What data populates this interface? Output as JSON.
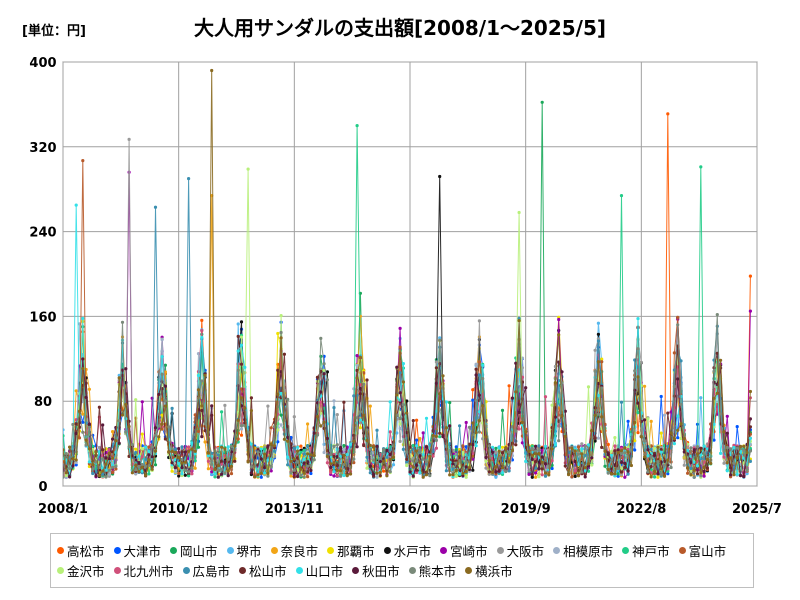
{
  "chart_data": {
    "type": "line",
    "title": "大人用サンダルの支出額[2008/1～2025/5]",
    "unit_label": "[単位：円]",
    "xlabel": "",
    "ylabel": "",
    "ylim": [
      0,
      400
    ],
    "yticks": [
      0,
      80,
      160,
      240,
      320,
      400
    ],
    "x_range": [
      "2008-01",
      "2025-07"
    ],
    "xticks": [
      "2008/1",
      "2010/12",
      "2013/11",
      "2016/10",
      "2019/9",
      "2022/8",
      "2025/7"
    ],
    "grid": true,
    "legend_position": "bottom",
    "series_names": [
      "高松市",
      "大津市",
      "岡山市",
      "堺市",
      "奈良市",
      "那覇市",
      "水戸市",
      "宮崎市",
      "大阪市",
      "相模原市",
      "神戸市",
      "富山市",
      "金沢市",
      "北九州市",
      "広島市",
      "松山市",
      "山口市",
      "秋田市",
      "熊本市",
      "横浜市"
    ],
    "series_colors": [
      "#ff5a00",
      "#0055ff",
      "#1aa85a",
      "#55b8ee",
      "#f2a516",
      "#f0e000",
      "#111111",
      "#9b00a8",
      "#999999",
      "#9fb0c8",
      "#22cc88",
      "#b85a2a",
      "#b8f07a",
      "#d0507a",
      "#3a8fb0",
      "#6e2a2a",
      "#33e0e8",
      "#5a1a3a",
      "#7a8a7a",
      "#8a6a20"
    ],
    "peaks": [
      {
        "series": "高松市",
        "x": "2023-04",
        "y": 351
      },
      {
        "series": "岡山市",
        "x": "2020-02",
        "y": 362
      },
      {
        "series": "横浜市",
        "x": "2011-10",
        "y": 392
      },
      {
        "series": "神戸市",
        "x": "2015-06",
        "y": 340
      },
      {
        "series": "大阪市",
        "x": "2009-09",
        "y": 327
      },
      {
        "series": "富山市",
        "x": "2008-07",
        "y": 307
      },
      {
        "series": "神戸市",
        "x": "2024-02",
        "y": 301
      },
      {
        "series": "金沢市",
        "x": "2012-09",
        "y": 299
      },
      {
        "series": "宮崎市",
        "x": "2009-09",
        "y": 296
      },
      {
        "series": "水戸市",
        "x": "2017-07",
        "y": 292
      },
      {
        "series": "広島市",
        "x": "2011-03",
        "y": 290
      },
      {
        "series": "神戸市",
        "x": "2022-02",
        "y": 274
      },
      {
        "series": "奈良市",
        "x": "2011-10",
        "y": 274
      },
      {
        "series": "金沢市",
        "x": "2019-07",
        "y": 258
      },
      {
        "series": "広島市",
        "x": "2010-05",
        "y": 263
      },
      {
        "series": "山口市",
        "x": "2008-05",
        "y": 265
      },
      {
        "series": "高松市",
        "x": "2025-05",
        "y": 198
      },
      {
        "series": "宮崎市",
        "x": "2025-05",
        "y": 165
      }
    ]
  }
}
